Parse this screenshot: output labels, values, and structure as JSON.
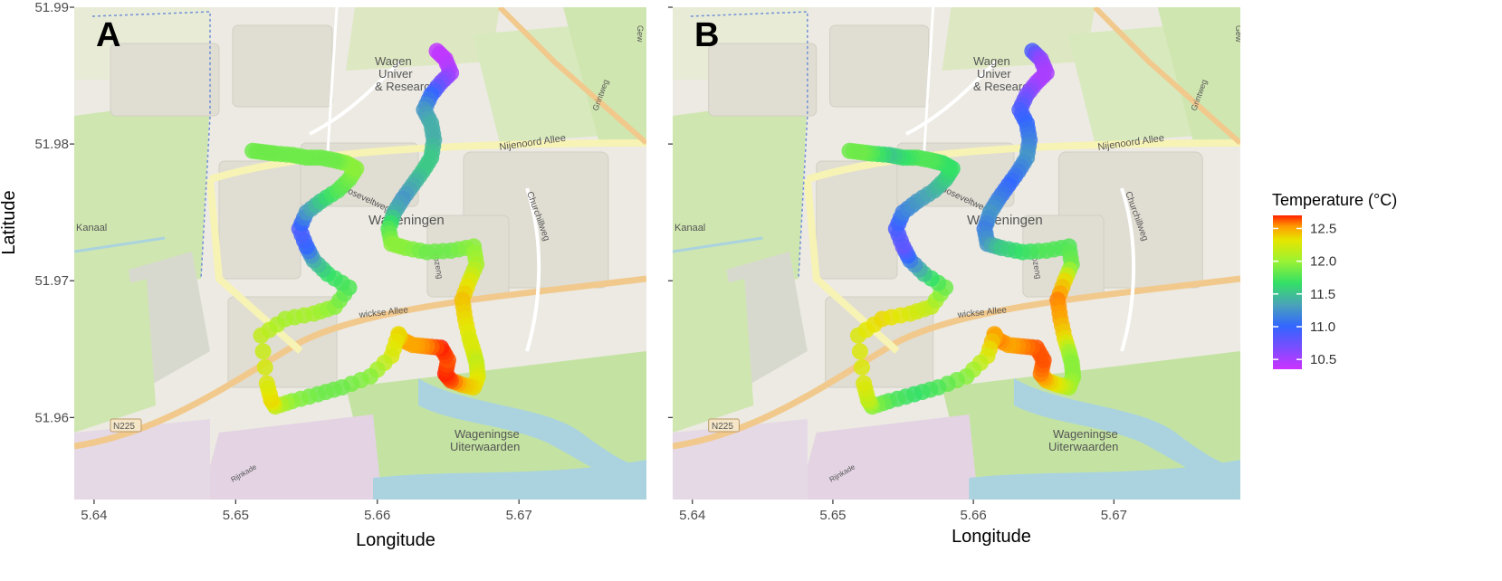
{
  "axes": {
    "xlabel": "Longitude",
    "ylabel": "Latitude",
    "x_ticks": [
      "5.64",
      "5.65",
      "5.66",
      "5.67"
    ],
    "y_ticks": [
      "51.99",
      "51.98",
      "51.97",
      "51.96"
    ]
  },
  "panels": [
    {
      "tag": "A"
    },
    {
      "tag": "B"
    }
  ],
  "map_labels": {
    "town": "Wageningen",
    "univ1": "Wagen",
    "univ2": "Univer",
    "univ3": "& Research",
    "nijenoord": "Nijenoord Allee",
    "roosevelt": "Rooseveltweg",
    "churchill": "Churchillweg",
    "wickse": "wickse Allee",
    "kanaal": "Kanaal",
    "n225": "N225",
    "uiterwaarden1": "Wageningse",
    "uiterwaarden2": "Uiterwaarden",
    "grintweg": "Grintweg",
    "rijnkade": "Rijnkade",
    "roz": "Rozeng",
    "gew": "Gew"
  },
  "legend": {
    "title": "Temperature (°C)",
    "ticks": [
      "12.5",
      "12.0",
      "11.5",
      "11.0",
      "10.5"
    ]
  },
  "colors": {
    "map_base": "#eeece4",
    "green_area": "#cbe6a8",
    "water": "#aad3df",
    "road_yellow": "#f7f3b5",
    "road_orange": "#f2c98c",
    "path_cool": "#8b3dff",
    "path_warm": "#ff2a00"
  },
  "chart_data": [
    {
      "type": "scatter",
      "panel": "A",
      "title": "",
      "xlabel": "Longitude",
      "ylabel": "Latitude",
      "xlim": [
        5.6386,
        5.679
      ],
      "ylim": [
        51.954,
        51.99
      ],
      "color_variable": "Temperature (°C)",
      "color_range": [
        10.3,
        12.7
      ],
      "x": [
        5.6642,
        5.6648,
        5.6652,
        5.6645,
        5.6638,
        5.6633,
        5.6638,
        5.664,
        5.6638,
        5.6632,
        5.6625,
        5.6618,
        5.6612,
        5.6608,
        5.661,
        5.662,
        5.6635,
        5.6652,
        5.6668,
        5.667,
        5.6665,
        5.666,
        5.6662,
        5.6665,
        5.6668,
        5.667,
        5.6671,
        5.6668,
        5.666,
        5.6652,
        5.6648,
        5.665,
        5.6645,
        5.6635,
        5.6625,
        5.6617,
        5.6615,
        5.661,
        5.6595,
        5.6575,
        5.6558,
        5.654,
        5.6528,
        5.6525,
        5.6522,
        5.6518,
        5.6535,
        5.6555,
        5.657,
        5.658,
        5.6565,
        5.6555,
        5.655,
        5.6545,
        5.655,
        5.656,
        5.6572,
        5.658,
        5.6585,
        5.6578,
        5.657,
        5.656,
        5.655,
        5.654,
        5.6528,
        5.652,
        5.6512
      ],
      "y": [
        51.9868,
        51.9862,
        51.9852,
        51.9845,
        51.9836,
        51.9825,
        51.9815,
        51.9803,
        51.979,
        51.978,
        51.977,
        51.976,
        51.975,
        51.9738,
        51.9727,
        51.9724,
        51.9721,
        51.9722,
        51.9725,
        51.9712,
        51.97,
        51.9686,
        51.9672,
        51.9658,
        51.9648,
        51.964,
        51.963,
        51.9622,
        51.9624,
        51.9627,
        51.9632,
        51.9642,
        51.9651,
        51.9652,
        51.9653,
        51.9657,
        51.9661,
        51.9645,
        51.963,
        51.9622,
        51.9617,
        51.9612,
        51.9608,
        51.9613,
        51.9625,
        51.966,
        51.9672,
        51.9676,
        51.9681,
        51.9695,
        51.9705,
        51.9715,
        51.9725,
        51.9738,
        51.975,
        51.9758,
        51.9766,
        51.9774,
        51.9782,
        51.9786,
        51.9788,
        51.979,
        51.979,
        51.9792,
        51.9793,
        51.9794,
        51.9795
      ],
      "values": [
        10.4,
        10.4,
        10.5,
        10.7,
        11.0,
        11.2,
        11.3,
        11.3,
        11.4,
        11.4,
        11.3,
        11.2,
        11.3,
        11.6,
        11.8,
        11.8,
        11.7,
        11.7,
        11.8,
        11.9,
        12.1,
        12.3,
        12.2,
        12.1,
        12.1,
        12.0,
        12.1,
        12.2,
        12.3,
        12.6,
        12.7,
        12.6,
        12.7,
        12.5,
        12.4,
        12.4,
        12.2,
        12.1,
        11.8,
        11.7,
        11.7,
        11.8,
        12.0,
        12.2,
        12.1,
        12.0,
        11.9,
        11.9,
        11.8,
        11.6,
        11.5,
        11.3,
        11.0,
        10.9,
        11.2,
        11.4,
        11.6,
        11.7,
        11.8,
        11.8,
        11.7,
        11.7,
        11.7,
        11.7,
        11.7,
        11.7,
        11.7
      ]
    },
    {
      "type": "scatter",
      "panel": "B",
      "title": "",
      "xlabel": "Longitude",
      "ylabel": "Latitude",
      "xlim": [
        5.6386,
        5.679
      ],
      "ylim": [
        51.954,
        51.99
      ],
      "color_variable": "Temperature (°C)",
      "color_range": [
        10.3,
        12.7
      ],
      "x": [
        5.6642,
        5.6648,
        5.6652,
        5.6645,
        5.6638,
        5.6633,
        5.6638,
        5.664,
        5.6638,
        5.6632,
        5.6625,
        5.6618,
        5.6612,
        5.6608,
        5.661,
        5.662,
        5.6635,
        5.6652,
        5.6668,
        5.667,
        5.6665,
        5.666,
        5.6662,
        5.6665,
        5.6668,
        5.667,
        5.6671,
        5.6668,
        5.666,
        5.6652,
        5.6648,
        5.665,
        5.6645,
        5.6635,
        5.6625,
        5.6617,
        5.6615,
        5.661,
        5.6595,
        5.6575,
        5.6558,
        5.654,
        5.6528,
        5.6525,
        5.6522,
        5.6518,
        5.6535,
        5.6555,
        5.657,
        5.658,
        5.6565,
        5.6555,
        5.655,
        5.6545,
        5.655,
        5.656,
        5.6572,
        5.658,
        5.6585,
        5.6578,
        5.657,
        5.656,
        5.655,
        5.654,
        5.6528,
        5.652,
        5.6512
      ],
      "y": [
        51.9868,
        51.9862,
        51.9852,
        51.9845,
        51.9836,
        51.9825,
        51.9815,
        51.9803,
        51.979,
        51.978,
        51.977,
        51.976,
        51.975,
        51.9738,
        51.9727,
        51.9724,
        51.9721,
        51.9722,
        51.9725,
        51.9712,
        51.97,
        51.9686,
        51.9672,
        51.9658,
        51.9648,
        51.964,
        51.963,
        51.9622,
        51.9624,
        51.9627,
        51.9632,
        51.9642,
        51.9651,
        51.9652,
        51.9653,
        51.9657,
        51.9661,
        51.9645,
        51.963,
        51.9622,
        51.9617,
        51.9612,
        51.9608,
        51.9613,
        51.9625,
        51.966,
        51.9672,
        51.9676,
        51.9681,
        51.9695,
        51.9705,
        51.9715,
        51.9725,
        51.9738,
        51.975,
        51.9758,
        51.9766,
        51.9774,
        51.9782,
        51.9786,
        51.9788,
        51.979,
        51.979,
        51.9792,
        51.9793,
        51.9794,
        51.9795
      ],
      "values": [
        10.9,
        10.6,
        10.5,
        10.5,
        10.7,
        10.9,
        11.0,
        11.1,
        11.2,
        11.1,
        11.0,
        11.1,
        11.2,
        11.1,
        11.2,
        11.4,
        11.5,
        11.6,
        11.6,
        11.7,
        12.2,
        12.5,
        12.4,
        12.2,
        11.9,
        11.8,
        11.8,
        11.9,
        12.1,
        12.3,
        12.5,
        12.6,
        12.6,
        12.5,
        12.4,
        12.5,
        12.4,
        12.1,
        11.8,
        11.6,
        11.5,
        11.6,
        11.8,
        12.0,
        12.1,
        12.1,
        12.2,
        12.1,
        12.0,
        11.7,
        11.4,
        11.1,
        10.8,
        10.9,
        11.1,
        11.2,
        11.3,
        11.4,
        11.5,
        11.5,
        11.6,
        11.6,
        11.5,
        11.4,
        11.6,
        11.7,
        11.7
      ]
    }
  ]
}
